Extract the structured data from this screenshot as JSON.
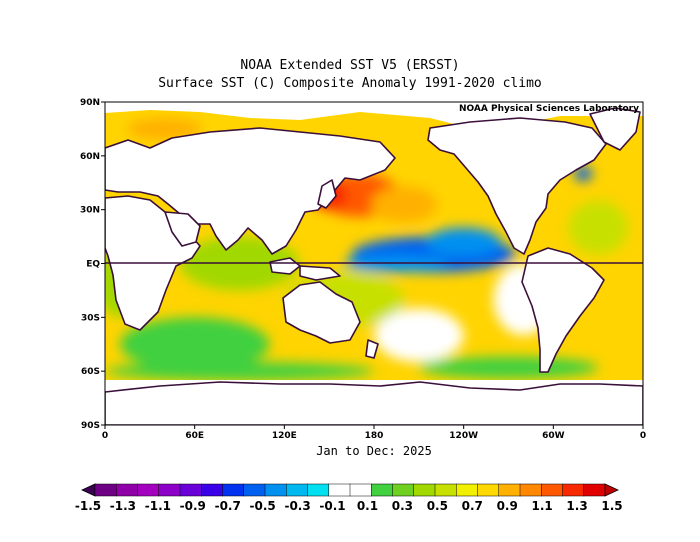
{
  "title": "NOAA Extended SST V5 (ERSST)",
  "subtitle": "Surface SST (C) Composite Anomaly 1991-2020 climo",
  "credit": "NOAA Physical Sciences Laboratory",
  "period": "Jan to Dec: 2025",
  "lat_ticks": [
    "90N",
    "60N",
    "30N",
    "EQ",
    "30S",
    "60S",
    "90S"
  ],
  "lon_ticks": [
    "0",
    "60E",
    "120E",
    "180",
    "120W",
    "60W",
    "0"
  ],
  "colorbar": {
    "labels": [
      "-1.5",
      "-1.3",
      "-1.1",
      "-0.9",
      "-0.7",
      "-0.5",
      "-0.3",
      "-0.1",
      "0.1",
      "0.3",
      "0.5",
      "0.7",
      "0.9",
      "1.1",
      "1.3",
      "1.5"
    ],
    "colors": [
      "#3d0054",
      "#6d0083",
      "#9000a8",
      "#a300c0",
      "#8d00c8",
      "#6a00d8",
      "#3a00e8",
      "#0032f0",
      "#0060f0",
      "#0090f0",
      "#00b8f0",
      "#00e0f0",
      "#ffffff",
      "#ffffff",
      "#40d040",
      "#70d020",
      "#a0d800",
      "#c8e000",
      "#f0f000",
      "#ffd800",
      "#ffb000",
      "#ff8800",
      "#ff5800",
      "#f82800",
      "#e00000",
      "#c00000"
    ]
  },
  "chart_data": {
    "type": "heatmap",
    "variable": "Surface SST (C) Composite Anomaly",
    "units": "C",
    "xlim": [
      0,
      360
    ],
    "ylim": [
      -90,
      90
    ],
    "color_levels": [
      -1.5,
      -1.3,
      -1.1,
      -0.9,
      -0.7,
      -0.5,
      -0.3,
      -0.1,
      0.1,
      0.3,
      0.5,
      0.7,
      0.9,
      1.1,
      1.3,
      1.5
    ],
    "background_color": "#ffd400",
    "regions": [
      {
        "lon": 170,
        "lat": 38,
        "rx": 28,
        "ry": 12,
        "value": 1.3
      },
      {
        "lon": 200,
        "lat": 33,
        "rx": 22,
        "ry": 10,
        "value": 1.1
      },
      {
        "lon": 150,
        "lat": 38,
        "rx": 12,
        "ry": 8,
        "value": 1.4
      },
      {
        "lon": 40,
        "lat": 75,
        "rx": 25,
        "ry": 6,
        "value": 1.1
      },
      {
        "lon": 10,
        "lat": 50,
        "rx": 8,
        "ry": 6,
        "value": 1.0
      },
      {
        "lon": 220,
        "lat": 5,
        "rx": 55,
        "ry": 10,
        "value": -0.6
      },
      {
        "lon": 240,
        "lat": 12,
        "rx": 25,
        "ry": 8,
        "value": -0.4
      },
      {
        "lon": 195,
        "lat": 0,
        "rx": 35,
        "ry": 5,
        "value": -0.3
      },
      {
        "lon": 320,
        "lat": 50,
        "rx": 6,
        "ry": 4,
        "value": -0.6
      },
      {
        "lon": 280,
        "lat": -20,
        "rx": 20,
        "ry": 20,
        "value": 0.1
      },
      {
        "lon": 210,
        "lat": -40,
        "rx": 30,
        "ry": 15,
        "value": 0.1
      },
      {
        "lon": 60,
        "lat": -45,
        "rx": 50,
        "ry": 15,
        "value": 0.2
      },
      {
        "lon": 90,
        "lat": 0,
        "rx": 40,
        "ry": 15,
        "value": 0.5
      },
      {
        "lon": 160,
        "lat": -20,
        "rx": 40,
        "ry": 15,
        "value": 0.6
      },
      {
        "lon": 10,
        "lat": -10,
        "rx": 15,
        "ry": 20,
        "value": 0.5
      },
      {
        "lon": 330,
        "lat": 20,
        "rx": 20,
        "ry": 15,
        "value": 0.7
      },
      {
        "lon": 270,
        "lat": -58,
        "rx": 60,
        "ry": 6,
        "value": 0.3
      },
      {
        "lon": 90,
        "lat": -60,
        "rx": 90,
        "ry": 5,
        "value": 0.2
      }
    ]
  }
}
